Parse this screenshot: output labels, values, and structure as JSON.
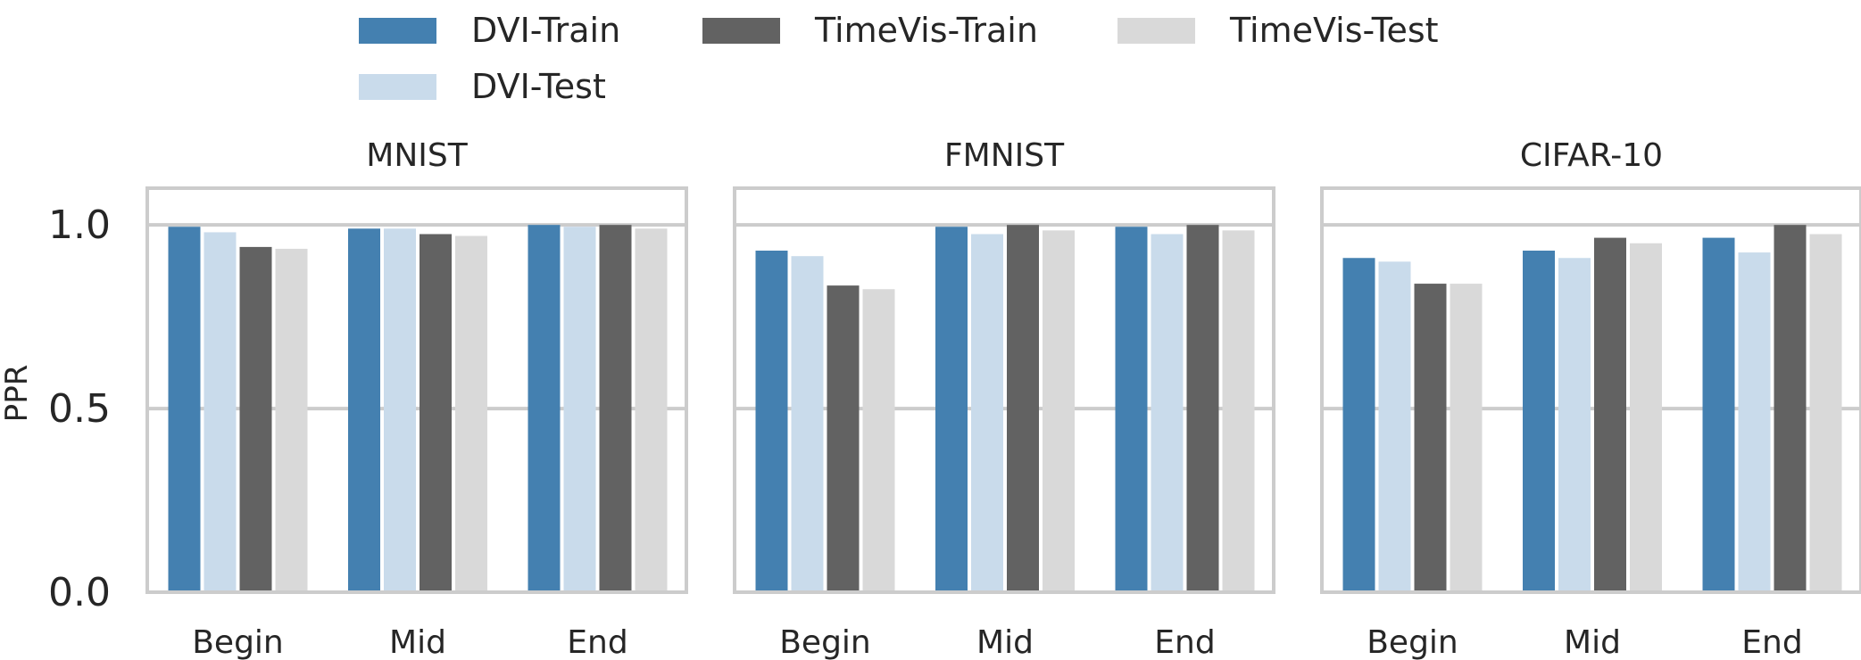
{
  "chart_data": {
    "type": "bar",
    "ylabel": "PPR",
    "ylim": [
      0,
      1.1
    ],
    "yticks": [
      "0.0",
      "0.5",
      "1.0"
    ],
    "categories": [
      "Begin",
      "Mid",
      "End"
    ],
    "legend": {
      "placement": "top",
      "entries": [
        "DVI-Train",
        "TimeVis-Train",
        "TimeVis-Test",
        "DVI-Test"
      ]
    },
    "colors": {
      "DVI-Train": "#4480b0",
      "DVI-Test": "#c9dbeb",
      "TimeVis-Train": "#626262",
      "TimeVis-Test": "#d9d9d9",
      "grid": "#cccccc",
      "frame": "#cccccc"
    },
    "grid": true,
    "panels": [
      {
        "title": "MNIST",
        "series": [
          {
            "name": "DVI-Train",
            "values": [
              0.995,
              0.99,
              1.0
            ]
          },
          {
            "name": "DVI-Test",
            "values": [
              0.98,
              0.99,
              0.995
            ]
          },
          {
            "name": "TimeVis-Train",
            "values": [
              0.94,
              0.975,
              1.0
            ]
          },
          {
            "name": "TimeVis-Test",
            "values": [
              0.935,
              0.97,
              0.99
            ]
          }
        ]
      },
      {
        "title": "FMNIST",
        "series": [
          {
            "name": "DVI-Train",
            "values": [
              0.93,
              0.995,
              0.995
            ]
          },
          {
            "name": "DVI-Test",
            "values": [
              0.915,
              0.975,
              0.975
            ]
          },
          {
            "name": "TimeVis-Train",
            "values": [
              0.835,
              1.0,
              1.0
            ]
          },
          {
            "name": "TimeVis-Test",
            "values": [
              0.825,
              0.985,
              0.985
            ]
          }
        ]
      },
      {
        "title": "CIFAR-10",
        "series": [
          {
            "name": "DVI-Train",
            "values": [
              0.91,
              0.93,
              0.965
            ]
          },
          {
            "name": "DVI-Test",
            "values": [
              0.9,
              0.91,
              0.925
            ]
          },
          {
            "name": "TimeVis-Train",
            "values": [
              0.84,
              0.965,
              1.0
            ]
          },
          {
            "name": "TimeVis-Test",
            "values": [
              0.84,
              0.95,
              0.975
            ]
          }
        ]
      }
    ]
  }
}
